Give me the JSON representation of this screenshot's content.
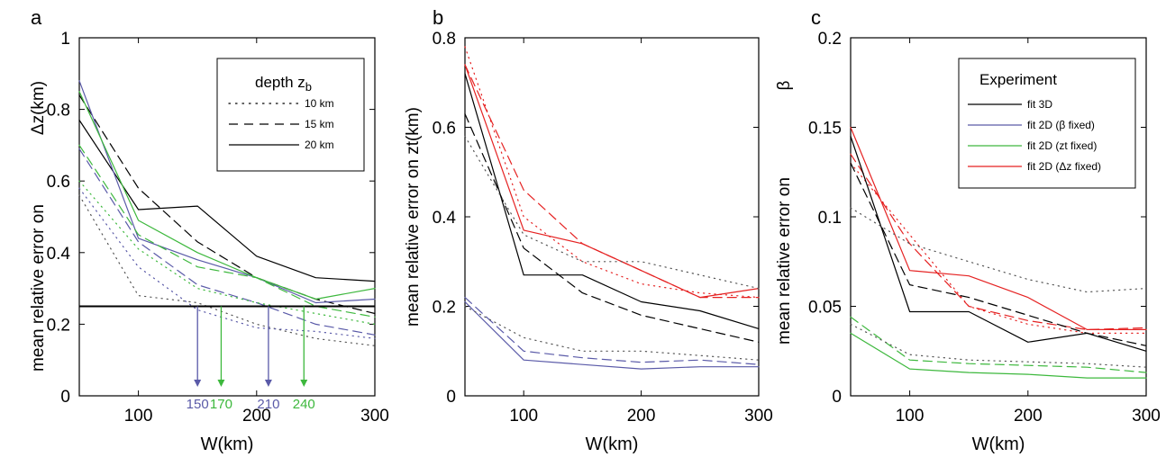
{
  "colors": {
    "black": "#000000",
    "blue": "#5a5aa8",
    "green": "#3db83d",
    "red": "#e52222",
    "dotted_gray": "#555555"
  },
  "chart_data": [
    {
      "panel_label": "a",
      "type": "line",
      "xlabel": "W(km)",
      "ylabel": "mean relative error on",
      "ylabel_symbol": "Δz(km)",
      "xlim": [
        50,
        300
      ],
      "ylim": [
        0,
        1
      ],
      "xticks": [
        "100",
        "200",
        "300"
      ],
      "yticks": [
        "0",
        "0.2",
        "0.4",
        "0.6",
        "0.8",
        "1"
      ],
      "grid": false,
      "legend": {
        "position": "top-right",
        "title": "depth z",
        "title_sub": "b",
        "entries": [
          {
            "label": "10 km",
            "style": "dotted"
          },
          {
            "label": "15 km",
            "style": "dashed"
          },
          {
            "label": "20 km",
            "style": "solid"
          }
        ]
      },
      "hline": 0.25,
      "arrows": [
        {
          "x": 150,
          "label": "150",
          "color": "blue"
        },
        {
          "x": 170,
          "label": "170",
          "color": "green"
        },
        {
          "x": 210,
          "label": "210",
          "color": "blue"
        },
        {
          "x": 240,
          "label": "240",
          "color": "green"
        }
      ],
      "series": [
        {
          "color": "black",
          "style": "solid",
          "x": [
            50,
            100,
            150,
            200,
            250,
            300
          ],
          "y": [
            0.77,
            0.52,
            0.53,
            0.39,
            0.33,
            0.32
          ]
        },
        {
          "color": "black",
          "style": "dashed",
          "x": [
            50,
            100,
            150,
            200,
            250,
            300
          ],
          "y": [
            0.84,
            0.58,
            0.43,
            0.33,
            0.27,
            0.23
          ]
        },
        {
          "color": "black",
          "style": "dotted",
          "x": [
            50,
            100,
            150,
            200,
            250,
            300
          ],
          "y": [
            0.56,
            0.28,
            0.26,
            0.2,
            0.16,
            0.14
          ]
        },
        {
          "color": "blue",
          "style": "solid",
          "x": [
            50,
            100,
            150,
            200,
            250,
            300
          ],
          "y": [
            0.88,
            0.44,
            0.38,
            0.33,
            0.26,
            0.27
          ]
        },
        {
          "color": "blue",
          "style": "dashed",
          "x": [
            50,
            100,
            150,
            200,
            250,
            300
          ],
          "y": [
            0.69,
            0.43,
            0.31,
            0.26,
            0.2,
            0.17
          ]
        },
        {
          "color": "blue",
          "style": "dotted",
          "x": [
            50,
            100,
            150,
            200,
            250,
            300
          ],
          "y": [
            0.58,
            0.36,
            0.24,
            0.19,
            0.18,
            0.16
          ]
        },
        {
          "color": "green",
          "style": "solid",
          "x": [
            50,
            100,
            150,
            200,
            250,
            300
          ],
          "y": [
            0.85,
            0.49,
            0.4,
            0.33,
            0.27,
            0.3
          ]
        },
        {
          "color": "green",
          "style": "dashed",
          "x": [
            50,
            100,
            150,
            200,
            250,
            300
          ],
          "y": [
            0.7,
            0.45,
            0.36,
            0.33,
            0.25,
            0.22
          ]
        },
        {
          "color": "green",
          "style": "dotted",
          "x": [
            50,
            100,
            150,
            200,
            250,
            300
          ],
          "y": [
            0.6,
            0.41,
            0.3,
            0.26,
            0.23,
            0.2
          ]
        }
      ]
    },
    {
      "panel_label": "b",
      "type": "line",
      "xlabel": "W(km)",
      "ylabel": "mean relative error on zt(km)",
      "xlim": [
        50,
        300
      ],
      "ylim": [
        0,
        0.8
      ],
      "xticks": [
        "100",
        "200",
        "300"
      ],
      "yticks": [
        "0",
        "0.2",
        "0.4",
        "0.6",
        "0.8"
      ],
      "grid": false,
      "series": [
        {
          "color": "red",
          "style": "solid",
          "x": [
            50,
            100,
            150,
            200,
            250,
            300
          ],
          "y": [
            0.74,
            0.37,
            0.34,
            0.28,
            0.22,
            0.24
          ]
        },
        {
          "color": "red",
          "style": "dashed",
          "x": [
            50,
            100,
            150,
            200,
            250,
            300
          ],
          "y": [
            0.74,
            0.46,
            0.34,
            0.28,
            0.22,
            0.22
          ]
        },
        {
          "color": "red",
          "style": "dotted",
          "x": [
            50,
            100,
            150,
            200,
            250,
            300
          ],
          "y": [
            0.78,
            0.4,
            0.3,
            0.25,
            0.23,
            0.22
          ]
        },
        {
          "color": "black",
          "style": "solid",
          "x": [
            50,
            100,
            150,
            200,
            250,
            300
          ],
          "y": [
            0.72,
            0.27,
            0.27,
            0.21,
            0.19,
            0.15
          ]
        },
        {
          "color": "black",
          "style": "dashed",
          "x": [
            50,
            100,
            150,
            200,
            250,
            300
          ],
          "y": [
            0.63,
            0.33,
            0.23,
            0.18,
            0.15,
            0.12
          ]
        },
        {
          "color": "black",
          "style": "dotted",
          "x": [
            50,
            100,
            150,
            200,
            250,
            300
          ],
          "y": [
            0.58,
            0.36,
            0.3,
            0.3,
            0.27,
            0.24
          ]
        },
        {
          "color": "blue",
          "style": "solid",
          "x": [
            50,
            100,
            150,
            200,
            250,
            300
          ],
          "y": [
            0.21,
            0.08,
            0.07,
            0.06,
            0.065,
            0.065
          ]
        },
        {
          "color": "blue",
          "style": "dashed",
          "x": [
            50,
            100,
            150,
            200,
            250,
            300
          ],
          "y": [
            0.22,
            0.1,
            0.085,
            0.075,
            0.08,
            0.07
          ]
        },
        {
          "color": "black",
          "style": "dotted",
          "x": [
            50,
            100,
            150,
            200,
            250,
            300
          ],
          "y": [
            0.2,
            0.13,
            0.1,
            0.1,
            0.09,
            0.08
          ]
        }
      ]
    },
    {
      "panel_label": "c",
      "type": "line",
      "xlabel": "W(km)",
      "ylabel": "mean relative error on",
      "ylabel_symbol": "β",
      "xlim": [
        50,
        300
      ],
      "ylim": [
        0,
        0.2
      ],
      "xticks": [
        "100",
        "200",
        "300"
      ],
      "yticks": [
        "0",
        "0.05",
        "0.1",
        "0.15",
        "0.2"
      ],
      "grid": false,
      "legend": {
        "position": "top-right",
        "title": "Experiment",
        "entries": [
          {
            "label": "fit 3D",
            "color": "black"
          },
          {
            "label": "fit 2D (β fixed)",
            "color": "blue"
          },
          {
            "label": "fit 2D (zt fixed)",
            "color": "green"
          },
          {
            "label": "fit 2D (Δz fixed)",
            "color": "red"
          }
        ]
      },
      "series": [
        {
          "color": "red",
          "style": "solid",
          "x": [
            50,
            100,
            150,
            200,
            250,
            300
          ],
          "y": [
            0.15,
            0.07,
            0.067,
            0.055,
            0.037,
            0.037
          ]
        },
        {
          "color": "red",
          "style": "dashed",
          "x": [
            50,
            100,
            150,
            200,
            250,
            300
          ],
          "y": [
            0.135,
            0.085,
            0.05,
            0.042,
            0.037,
            0.038
          ]
        },
        {
          "color": "red",
          "style": "dotted",
          "x": [
            50,
            100,
            150,
            200,
            250,
            300
          ],
          "y": [
            0.13,
            0.09,
            0.05,
            0.04,
            0.035,
            0.035
          ]
        },
        {
          "color": "black",
          "style": "solid",
          "x": [
            50,
            100,
            150,
            200,
            250,
            300
          ],
          "y": [
            0.145,
            0.047,
            0.047,
            0.03,
            0.035,
            0.025
          ]
        },
        {
          "color": "black",
          "style": "dashed",
          "x": [
            50,
            100,
            150,
            200,
            250,
            300
          ],
          "y": [
            0.13,
            0.062,
            0.055,
            0.045,
            0.035,
            0.028
          ]
        },
        {
          "color": "black",
          "style": "dotted",
          "x": [
            50,
            100,
            150,
            200,
            250,
            300
          ],
          "y": [
            0.105,
            0.085,
            0.075,
            0.065,
            0.058,
            0.06
          ]
        },
        {
          "color": "green",
          "style": "solid",
          "x": [
            50,
            100,
            150,
            200,
            250,
            300
          ],
          "y": [
            0.035,
            0.015,
            0.013,
            0.012,
            0.01,
            0.01
          ]
        },
        {
          "color": "green",
          "style": "dashed",
          "x": [
            50,
            100,
            150,
            200,
            250,
            300
          ],
          "y": [
            0.044,
            0.02,
            0.018,
            0.017,
            0.016,
            0.013
          ]
        },
        {
          "color": "black",
          "style": "dotted",
          "x": [
            50,
            100,
            150,
            200,
            250,
            300
          ],
          "y": [
            0.04,
            0.023,
            0.02,
            0.019,
            0.018,
            0.016
          ]
        }
      ]
    }
  ]
}
